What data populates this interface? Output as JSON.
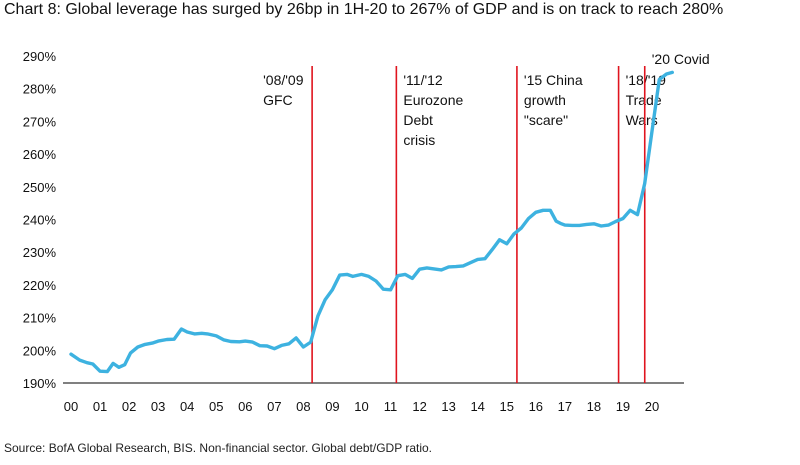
{
  "chart_data": {
    "type": "line",
    "title": "Chart 8: Global leverage has surged by 26bp in 1H-20 to 267% of GDP and is on track to reach 280%",
    "source": "Source: BofA Global Research, BIS. Non-financial sector. Global debt/GDP ratio.",
    "xlabel": "",
    "ylabel": "",
    "ylim": [
      190,
      290
    ],
    "xlim": [
      2000,
      2020.9
    ],
    "y_ticks": [
      "190%",
      "200%",
      "210%",
      "220%",
      "230%",
      "240%",
      "250%",
      "260%",
      "270%",
      "280%",
      "290%"
    ],
    "x_ticks": [
      "00",
      "01",
      "02",
      "03",
      "04",
      "05",
      "06",
      "07",
      "08",
      "09",
      "10",
      "11",
      "12",
      "13",
      "14",
      "15",
      "16",
      "17",
      "18",
      "19",
      "20"
    ],
    "grid": false,
    "line_color": "#3db2e0",
    "event_line_color": "#e0141e",
    "series": [
      {
        "x": [
          2000.0,
          2000.3,
          2000.55,
          2000.75,
          2001.0,
          2001.25,
          2001.45,
          2001.65,
          2001.85,
          2002.05,
          2002.3,
          2002.55,
          2002.8,
          2003.0,
          2003.3,
          2003.55,
          2003.8,
          2004.0,
          2004.25,
          2004.5,
          2004.7,
          2005.0,
          2005.25,
          2005.5,
          2005.8,
          2006.0,
          2006.25,
          2006.5,
          2006.75,
          2007.0,
          2007.25,
          2007.5,
          2007.75,
          2008.0,
          2008.25,
          2008.5,
          2008.75,
          2009.0,
          2009.25,
          2009.5,
          2009.7,
          2010.0,
          2010.25,
          2010.5,
          2010.75,
          2011.0,
          2011.25,
          2011.5,
          2011.75,
          2012.0,
          2012.25,
          2012.5,
          2012.75,
          2013.0,
          2013.25,
          2013.5,
          2013.75,
          2014.0,
          2014.25,
          2014.5,
          2014.75,
          2015.0,
          2015.25,
          2015.5,
          2015.75,
          2016.0,
          2016.25,
          2016.5,
          2016.7,
          2016.85,
          2017.0,
          2017.25,
          2017.5,
          2017.75,
          2018.0,
          2018.25,
          2018.5,
          2018.75,
          2019.0,
          2019.25,
          2019.5,
          2019.75,
          2020.0,
          2020.25,
          2020.5,
          2020.7
        ],
        "values": [
          198.8,
          197.0,
          196.2,
          195.8,
          193.6,
          193.5,
          196.0,
          194.8,
          195.6,
          199.2,
          201.0,
          201.8,
          202.2,
          202.8,
          203.3,
          203.4,
          206.5,
          205.6,
          205.0,
          205.2,
          205.0,
          204.4,
          203.2,
          202.7,
          202.6,
          202.8,
          202.5,
          201.4,
          201.3,
          200.5,
          201.5,
          202.0,
          203.8,
          201.0,
          202.5,
          210.5,
          215.5,
          218.5,
          223.0,
          223.2,
          222.6,
          223.2,
          222.6,
          221.2,
          218.7,
          218.5,
          222.8,
          223.2,
          222.0,
          224.8,
          225.2,
          224.9,
          224.6,
          225.5,
          225.6,
          225.8,
          226.8,
          227.8,
          228.0,
          230.8,
          233.8,
          232.6,
          235.6,
          237.4,
          240.3,
          242.2,
          242.8,
          242.8,
          239.5,
          238.8,
          238.3,
          238.2,
          238.2,
          238.5,
          238.7,
          238.0,
          238.3,
          239.4,
          240.3,
          242.8,
          241.5,
          251.0,
          267.0,
          282.8,
          284.5,
          285.0
        ]
      }
    ],
    "events": [
      {
        "x": 2008.3,
        "label": [
          "'08/'09",
          "GFC"
        ]
      },
      {
        "x": 2011.2,
        "label": [
          "'11/'12",
          "Eurozone",
          "Debt",
          "crisis"
        ]
      },
      {
        "x": 2015.35,
        "label": [
          "'15 China",
          "growth",
          "\"scare\""
        ]
      },
      {
        "x": 2018.85,
        "label": [
          "'18/'19",
          "Trade",
          "Wars"
        ]
      },
      {
        "x": 2019.75,
        "label": [
          "'20 Covid"
        ]
      }
    ]
  }
}
